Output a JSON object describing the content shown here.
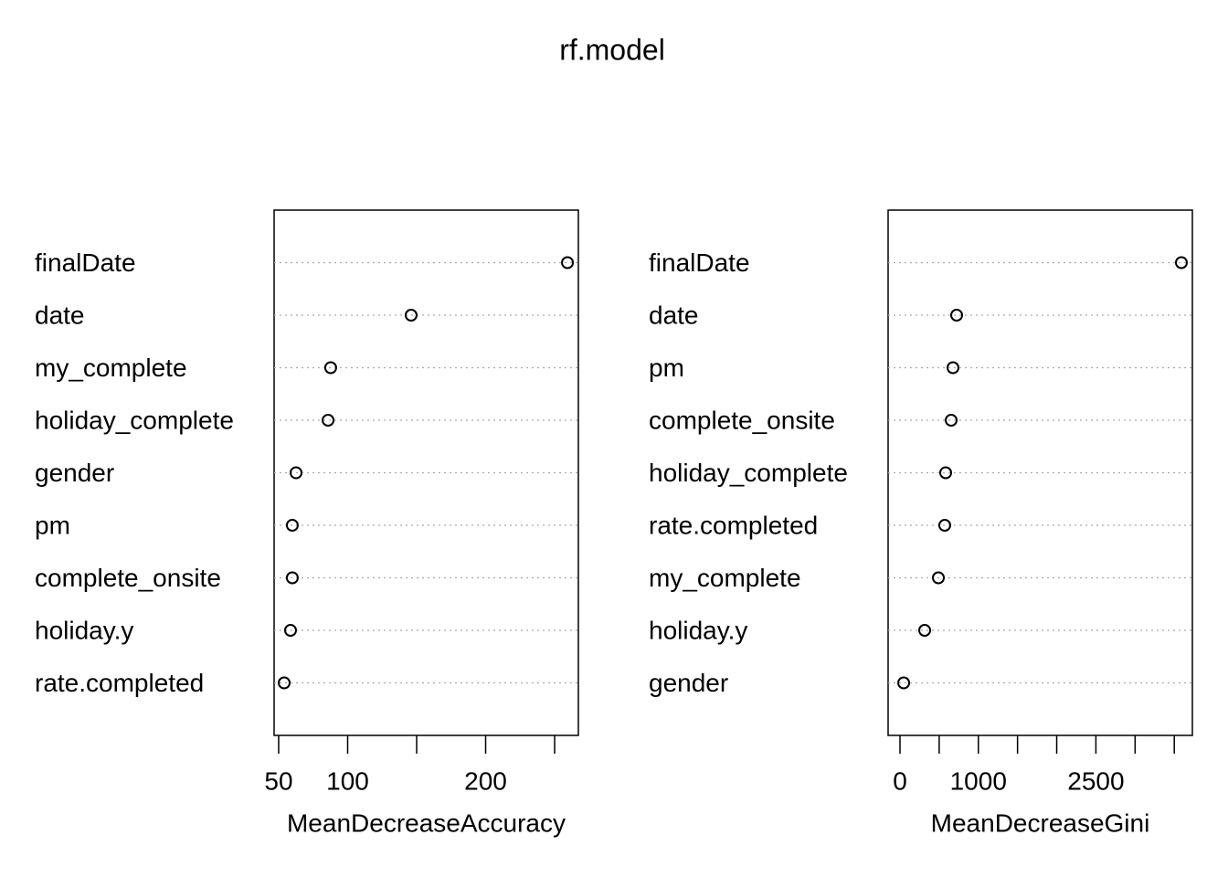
{
  "title": "rf.model",
  "chart_data": [
    {
      "type": "dot",
      "xlabel": "MeanDecreaseAccuracy",
      "categories": [
        "finalDate",
        "date",
        "my_complete",
        "holiday_complete",
        "gender",
        "pm",
        "complete_onsite",
        "holiday.y",
        "rate.completed"
      ],
      "values": [
        259.3,
        146,
        87.7,
        85.8,
        62.6,
        59.9,
        59.9,
        58.6,
        54
      ],
      "xlim": [
        46.7,
        267.2
      ],
      "xticks": [
        50,
        100,
        {
          "value": 150,
          "label": null
        },
        200,
        {
          "value": 250,
          "label": null
        }
      ],
      "grid": true,
      "color": "#000000"
    },
    {
      "type": "dot",
      "xlabel": "MeanDecreaseGini",
      "categories": [
        "finalDate",
        "date",
        "pm",
        "complete_onsite",
        "holiday_complete",
        "rate.completed",
        "my_complete",
        "holiday.y",
        "gender"
      ],
      "values": [
        3591,
        723,
        676,
        653,
        583,
        571,
        490,
        315,
        47
      ],
      "xlim": [
        -151.6,
        3731
      ],
      "xticks": [
        0,
        {
          "value": 500,
          "label": null
        },
        1000,
        {
          "value": 1500,
          "label": null
        },
        {
          "value": 2000,
          "label": null
        },
        2500,
        {
          "value": 3000,
          "label": null
        },
        {
          "value": 3500,
          "label": null
        }
      ],
      "grid": true,
      "color": "#000000"
    }
  ]
}
